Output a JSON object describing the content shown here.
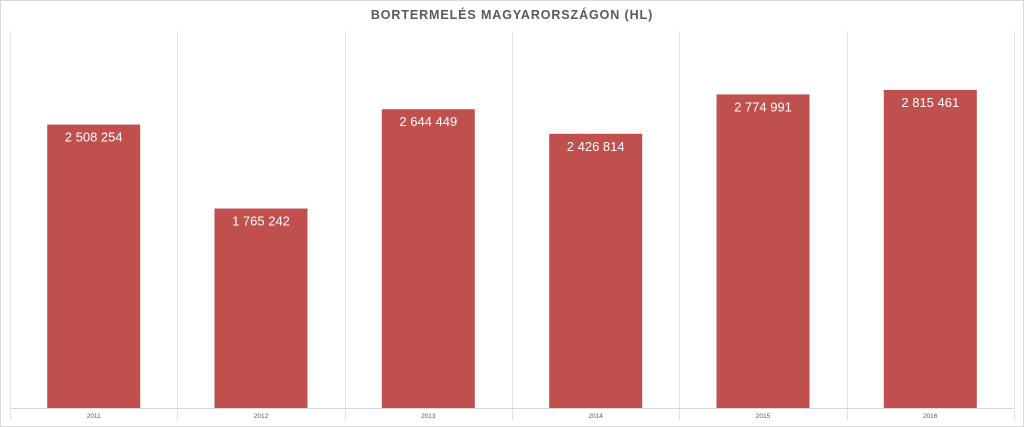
{
  "chart_data": {
    "type": "bar",
    "title": "BORTERMELÉS MAGYARORSZÁGON (HL)",
    "xlabel": "",
    "ylabel": "",
    "categories": [
      "2011",
      "2012",
      "2013",
      "2014",
      "2015",
      "2016"
    ],
    "values": [
      2508254,
      1765242,
      2644449,
      2426814,
      2774991,
      2815461
    ],
    "value_labels": [
      "2 508 254",
      "1 765 242",
      "2 644 449",
      "2 426 814",
      "2 774 991",
      "2 815 461"
    ],
    "ylim": [
      0,
      3000000
    ],
    "grid": "vertical category separators",
    "legend": "none",
    "bar_color": "#c0504d",
    "label_color": "#ffffff"
  }
}
